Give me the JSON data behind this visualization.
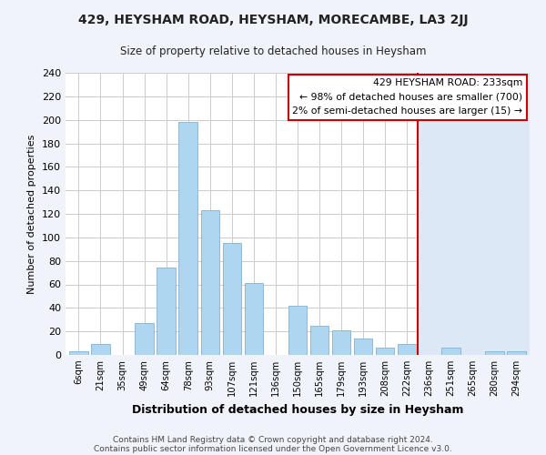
{
  "title": "429, HEYSHAM ROAD, HEYSHAM, MORECAMBE, LA3 2JJ",
  "subtitle": "Size of property relative to detached houses in Heysham",
  "xlabel": "Distribution of detached houses by size in Heysham",
  "ylabel": "Number of detached properties",
  "bar_labels": [
    "6sqm",
    "21sqm",
    "35sqm",
    "49sqm",
    "64sqm",
    "78sqm",
    "93sqm",
    "107sqm",
    "121sqm",
    "136sqm",
    "150sqm",
    "165sqm",
    "179sqm",
    "193sqm",
    "208sqm",
    "222sqm",
    "236sqm",
    "251sqm",
    "265sqm",
    "280sqm",
    "294sqm"
  ],
  "bar_values": [
    3,
    9,
    0,
    27,
    74,
    198,
    123,
    95,
    61,
    0,
    42,
    25,
    21,
    14,
    6,
    9,
    0,
    6,
    0,
    3,
    3
  ],
  "bar_color": "#aed6f1",
  "bar_edge_color": "#7fb3d3",
  "vline_x_index": 16,
  "vline_color": "#cc0000",
  "highlight_bg_color": "#dce8f5",
  "annotation_title": "429 HEYSHAM ROAD: 233sqm",
  "annotation_line1": "← 98% of detached houses are smaller (700)",
  "annotation_line2": "2% of semi-detached houses are larger (15) →",
  "ylim": [
    0,
    240
  ],
  "yticks": [
    0,
    20,
    40,
    60,
    80,
    100,
    120,
    140,
    160,
    180,
    200,
    220,
    240
  ],
  "footer1": "Contains HM Land Registry data © Crown copyright and database right 2024.",
  "footer2": "Contains public sector information licensed under the Open Government Licence v3.0.",
  "bg_color": "#f0f4fa",
  "plot_bg_color": "#ffffff",
  "grid_color": "#cccccc"
}
